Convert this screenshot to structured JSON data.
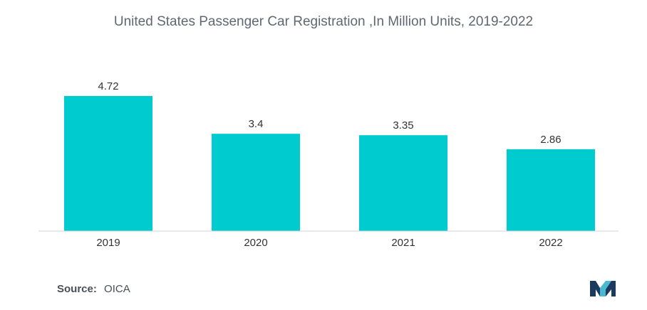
{
  "colors": {
    "bar": "#00cbcf",
    "axis": "#cfd3d6",
    "logo_dark": "#1c3a5e",
    "logo_light": "#4bb8d2"
  },
  "source": {
    "label": "Source:",
    "value": "OICA"
  },
  "logo": {
    "icon": "mordor-intelligence-logo-icon"
  },
  "chart_data": {
    "type": "bar",
    "title": "United States Passenger Car Registration ,In Million Units, 2019-2022",
    "categories": [
      "2019",
      "2020",
      "2021",
      "2022"
    ],
    "values": [
      4.72,
      3.4,
      3.35,
      2.86
    ],
    "value_labels": [
      "4.72",
      "3.4",
      "3.35",
      "2.86"
    ],
    "xlabel": "",
    "ylabel": "",
    "ylim": [
      0,
      5
    ],
    "grid": false,
    "legend": "none"
  }
}
